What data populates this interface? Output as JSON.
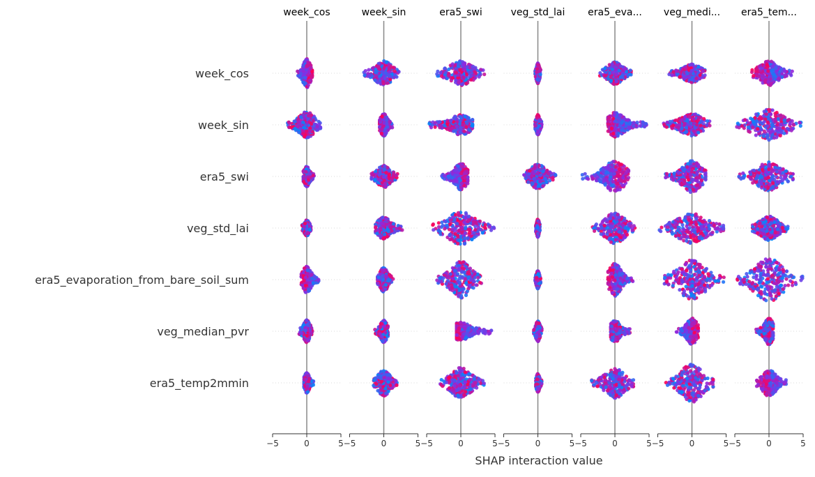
{
  "chart_data": {
    "type": "scatter",
    "subtype": "shap-interaction-summary-beeswarm",
    "xlabel": "SHAP interaction value",
    "xlim": [
      -5,
      5
    ],
    "xticks": [
      "−5",
      "0",
      "5"
    ],
    "grid": false,
    "features": [
      "week_cos",
      "week_sin",
      "era5_swi",
      "veg_std_lai",
      "era5_evaporation_from_bare_soil_sum",
      "veg_median_pvr",
      "era5_temp2mmin"
    ],
    "column_titles": [
      "week_cos",
      "week_sin",
      "era5_swi",
      "veg_std_lai",
      "era5_eva...",
      "veg_medi...",
      "era5_tem..."
    ],
    "colors": {
      "high": "#ff0052",
      "low": "#008bfb",
      "mid": "#8a2be2",
      "axis": "#888888",
      "text": "#333333"
    },
    "cells": [
      [
        {
          "min": -1.5,
          "max": 0.8,
          "spread": 0.55,
          "skew": -1
        },
        {
          "min": -2.9,
          "max": 2.2,
          "spread": 0.45,
          "skew": 0
        },
        {
          "min": -3.5,
          "max": 3.5,
          "spread": 0.45,
          "skew": 0
        },
        {
          "min": -0.4,
          "max": 0.4,
          "spread": 0.35,
          "skew": 0
        },
        {
          "min": -2.2,
          "max": 2.4,
          "spread": 0.4,
          "skew": 0
        },
        {
          "min": -3.4,
          "max": 1.9,
          "spread": 0.3,
          "skew": 0
        },
        {
          "min": -2.5,
          "max": 3.4,
          "spread": 0.45,
          "skew": 1
        }
      ],
      [
        {
          "min": -2.8,
          "max": 2.0,
          "spread": 0.5,
          "skew": 0
        },
        {
          "min": -0.6,
          "max": 1.4,
          "spread": 0.4,
          "skew": 1
        },
        {
          "min": -4.6,
          "max": 1.7,
          "spread": 0.35,
          "skew": 0
        },
        {
          "min": -0.4,
          "max": 0.6,
          "spread": 0.35,
          "skew": 0
        },
        {
          "min": -1.0,
          "max": 4.6,
          "spread": 0.45,
          "skew": 1
        },
        {
          "min": -4.3,
          "max": 2.6,
          "spread": 0.4,
          "skew": 0
        },
        {
          "min": -4.7,
          "max": 5.0,
          "spread": 0.6,
          "skew": 0
        }
      ],
      [
        {
          "min": -0.5,
          "max": 1.1,
          "spread": 0.35,
          "skew": 0
        },
        {
          "min": -1.8,
          "max": 2.0,
          "spread": 0.4,
          "skew": 0
        },
        {
          "min": -2.8,
          "max": 1.0,
          "spread": 0.5,
          "skew": -1
        },
        {
          "min": -2.2,
          "max": 2.6,
          "spread": 0.45,
          "skew": 0
        },
        {
          "min": -4.8,
          "max": 2.0,
          "spread": 0.6,
          "skew": -1
        },
        {
          "min": -3.9,
          "max": 2.0,
          "spread": 0.65,
          "skew": 0
        },
        {
          "min": -4.4,
          "max": 3.5,
          "spread": 0.55,
          "skew": 0
        }
      ],
      [
        {
          "min": -0.7,
          "max": 0.6,
          "spread": 0.25,
          "skew": 0
        },
        {
          "min": -1.2,
          "max": 2.7,
          "spread": 0.4,
          "skew": 0
        },
        {
          "min": -4.1,
          "max": 5.0,
          "spread": 0.65,
          "skew": 0
        },
        {
          "min": -0.3,
          "max": 0.3,
          "spread": 0.3,
          "skew": 0
        },
        {
          "min": -3.5,
          "max": 3.0,
          "spread": 0.6,
          "skew": 0
        },
        {
          "min": -4.8,
          "max": 4.6,
          "spread": 0.6,
          "skew": 0
        },
        {
          "min": -2.4,
          "max": 3.0,
          "spread": 0.45,
          "skew": 0
        }
      ],
      [
        {
          "min": -0.8,
          "max": 1.8,
          "spread": 0.5,
          "skew": 1
        },
        {
          "min": -0.9,
          "max": 1.4,
          "spread": 0.45,
          "skew": 0
        },
        {
          "min": -3.6,
          "max": 3.0,
          "spread": 0.75,
          "skew": 0
        },
        {
          "min": -0.4,
          "max": 0.4,
          "spread": 0.3,
          "skew": 0
        },
        {
          "min": -1.0,
          "max": 2.7,
          "spread": 0.65,
          "skew": 1
        },
        {
          "min": -4.1,
          "max": 5.0,
          "spread": 0.8,
          "skew": 0
        },
        {
          "min": -4.6,
          "max": 4.9,
          "spread": 0.9,
          "skew": 0
        }
      ],
      [
        {
          "min": -1.1,
          "max": 0.8,
          "spread": 0.4,
          "skew": 0
        },
        {
          "min": -1.3,
          "max": 0.6,
          "spread": 0.4,
          "skew": 0
        },
        {
          "min": -0.6,
          "max": 4.6,
          "spread": 0.3,
          "skew": 1
        },
        {
          "min": -0.6,
          "max": 0.6,
          "spread": 0.35,
          "skew": 0
        },
        {
          "min": -0.6,
          "max": 2.2,
          "spread": 0.4,
          "skew": 0
        },
        {
          "min": -2.3,
          "max": 0.9,
          "spread": 0.5,
          "skew": -1
        },
        {
          "min": -2.0,
          "max": 0.6,
          "spread": 0.5,
          "skew": 0
        }
      ],
      [
        {
          "min": -0.4,
          "max": 1.0,
          "spread": 0.35,
          "skew": 0
        },
        {
          "min": -1.5,
          "max": 2.0,
          "spread": 0.5,
          "skew": 0
        },
        {
          "min": -3.0,
          "max": 3.4,
          "spread": 0.6,
          "skew": 0
        },
        {
          "min": -0.3,
          "max": 0.6,
          "spread": 0.3,
          "skew": 0
        },
        {
          "min": -3.4,
          "max": 2.7,
          "spread": 0.6,
          "skew": 0
        },
        {
          "min": -3.8,
          "max": 3.1,
          "spread": 0.8,
          "skew": 0
        },
        {
          "min": -1.8,
          "max": 2.5,
          "spread": 0.5,
          "skew": 1
        }
      ]
    ]
  }
}
